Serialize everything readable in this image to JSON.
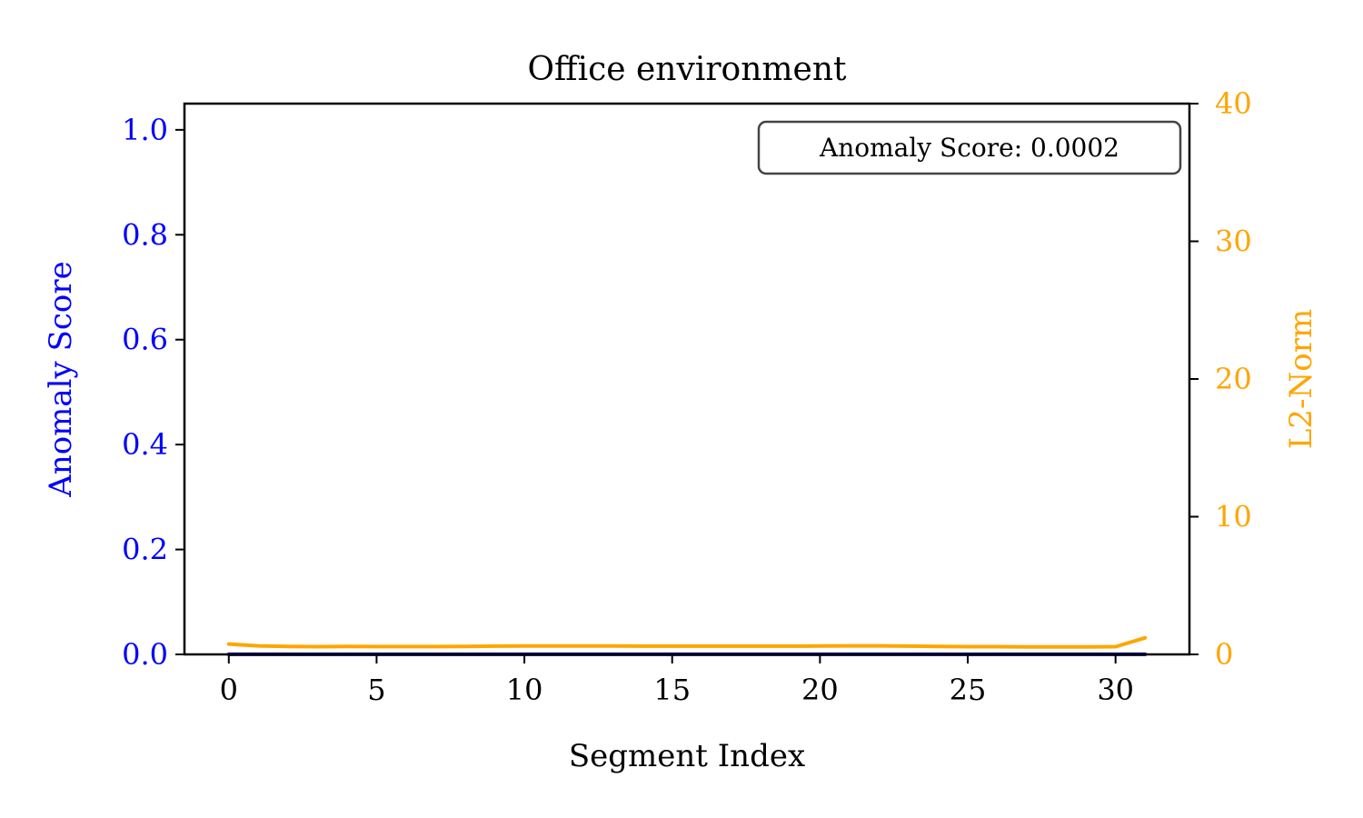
{
  "chart_data": {
    "type": "line",
    "title": "Office environment",
    "xlabel": "Segment Index",
    "ylabel_left": "Anomaly Score",
    "ylabel_right": "L2-Norm",
    "xlim": [
      -1.5,
      32.5
    ],
    "ylim_left": [
      0,
      1.05
    ],
    "ylim_right": [
      0,
      40
    ],
    "x_ticks": [
      0,
      5,
      10,
      15,
      20,
      25,
      30
    ],
    "x_tick_labels": [
      "0",
      "5",
      "10",
      "15",
      "20",
      "25",
      "30"
    ],
    "y_left_ticks": [
      0,
      0.2,
      0.4,
      0.6,
      0.8,
      1.0
    ],
    "y_left_tick_labels": [
      "0.0",
      "0.2",
      "0.4",
      "0.6",
      "0.8",
      "1.0"
    ],
    "y_right_ticks": [
      0,
      10,
      20,
      30,
      40
    ],
    "y_right_tick_labels": [
      "0",
      "10",
      "20",
      "30",
      "40"
    ],
    "annotation": "Anomaly Score: 0.0002",
    "grid": false,
    "colors": {
      "left_axis": "#0000ff",
      "right_axis": "#ffa500",
      "text": "#000000",
      "box_edge": "#444444"
    },
    "series": [
      {
        "axis": "left",
        "color": "#00008b",
        "x": [
          0,
          1,
          2,
          3,
          4,
          5,
          6,
          7,
          8,
          9,
          10,
          11,
          12,
          13,
          14,
          15,
          16,
          17,
          18,
          19,
          20,
          21,
          22,
          23,
          24,
          25,
          26,
          27,
          28,
          29,
          30,
          31
        ],
        "values": [
          0.0002,
          0.0002,
          0.0002,
          0.0002,
          0.0002,
          0.0002,
          0.0002,
          0.0002,
          0.0002,
          0.0002,
          0.0002,
          0.0002,
          0.0002,
          0.0002,
          0.0002,
          0.0002,
          0.0002,
          0.0002,
          0.0002,
          0.0002,
          0.0002,
          0.0002,
          0.0002,
          0.0002,
          0.0002,
          0.0002,
          0.0002,
          0.0002,
          0.0002,
          0.0002,
          0.0002,
          0.0002
        ]
      },
      {
        "axis": "right",
        "color": "#ffa500",
        "x": [
          0,
          1,
          2,
          3,
          4,
          5,
          6,
          7,
          8,
          9,
          10,
          11,
          12,
          13,
          14,
          15,
          16,
          17,
          18,
          19,
          20,
          21,
          22,
          23,
          24,
          25,
          26,
          27,
          28,
          29,
          30,
          31
        ],
        "values": [
          0.75,
          0.62,
          0.58,
          0.56,
          0.58,
          0.57,
          0.57,
          0.57,
          0.58,
          0.6,
          0.61,
          0.61,
          0.61,
          0.61,
          0.6,
          0.6,
          0.6,
          0.6,
          0.6,
          0.6,
          0.61,
          0.62,
          0.62,
          0.6,
          0.58,
          0.56,
          0.56,
          0.55,
          0.55,
          0.55,
          0.56,
          1.2
        ]
      }
    ]
  }
}
